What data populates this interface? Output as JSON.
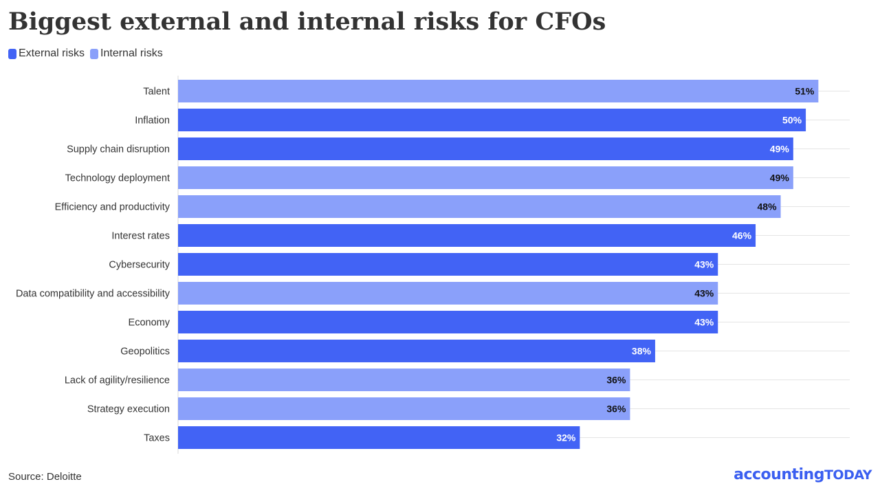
{
  "title": "Biggest external and internal risks for CFOs",
  "legend": [
    {
      "label": "External risks",
      "color": "#4263f5"
    },
    {
      "label": "Internal risks",
      "color": "#8aa0fa"
    }
  ],
  "source": "Source: Deloitte",
  "logo": {
    "word1": "accounting",
    "word2": "TODAY"
  },
  "chart_data": {
    "type": "bar",
    "orientation": "horizontal",
    "categories": [
      "Talent",
      "Inflation",
      "Supply chain disruption",
      "Technology deployment",
      "Efficiency and productivity",
      "Interest rates",
      "Cybersecurity",
      "Data compatibility and accessibility",
      "Economy",
      "Geopolitics",
      "Lack of agility/resilience",
      "Strategy execution",
      "Taxes"
    ],
    "values": [
      51,
      50,
      49,
      49,
      48,
      46,
      43,
      43,
      43,
      38,
      36,
      36,
      32
    ],
    "value_labels": [
      "51%",
      "50%",
      "49%",
      "49%",
      "48%",
      "46%",
      "43%",
      "43%",
      "43%",
      "38%",
      "36%",
      "36%",
      "32%"
    ],
    "risk_type": [
      "Internal risks",
      "External risks",
      "External risks",
      "Internal risks",
      "Internal risks",
      "External risks",
      "External risks",
      "Internal risks",
      "External risks",
      "External risks",
      "Internal risks",
      "Internal risks",
      "External risks"
    ],
    "xlim": [
      0,
      53.5
    ],
    "unit": "%",
    "grid": true,
    "legend_position": "top-left"
  }
}
